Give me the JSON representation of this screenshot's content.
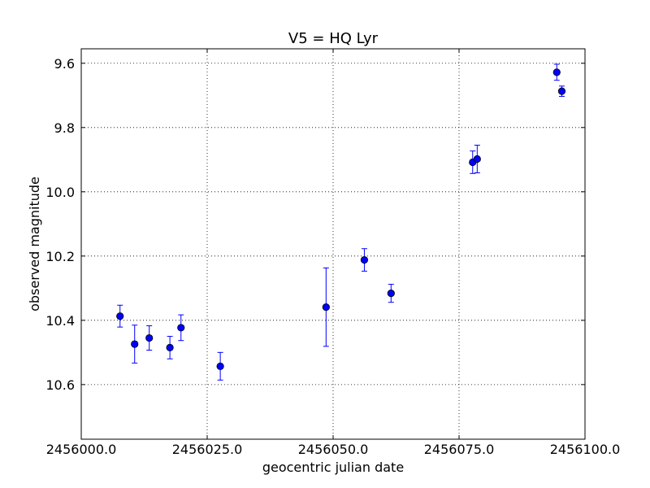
{
  "chart_data": {
    "type": "scatter",
    "title": "V5 = HQ Lyr",
    "xlabel": "geocentric julian date",
    "ylabel": "observed magnitude",
    "xlim": [
      2456000.0,
      2456100.0
    ],
    "ylim": [
      10.77,
      9.555
    ],
    "y_inverted": true,
    "grid": true,
    "xticks": [
      2456000.0,
      2456025.0,
      2456050.0,
      2456075.0,
      2456100.0
    ],
    "xtick_labels": [
      "2456000.0",
      "2456025.0",
      "2456050.0",
      "2456075.0",
      "2456100.0"
    ],
    "yticks": [
      9.6,
      9.8,
      10.0,
      10.2,
      10.4,
      10.6
    ],
    "ytick_labels": [
      "9.6",
      "9.8",
      "10.0",
      "10.2",
      "10.4",
      "10.6"
    ],
    "points": [
      {
        "x": 2456007.7,
        "y": 10.387,
        "err": 0.034
      },
      {
        "x": 2456010.6,
        "y": 10.474,
        "err": 0.059
      },
      {
        "x": 2456013.5,
        "y": 10.455,
        "err": 0.038
      },
      {
        "x": 2456017.6,
        "y": 10.485,
        "err": 0.035
      },
      {
        "x": 2456019.8,
        "y": 10.423,
        "err": 0.04
      },
      {
        "x": 2456027.6,
        "y": 10.543,
        "err": 0.043
      },
      {
        "x": 2456048.6,
        "y": 10.359,
        "err": 0.122
      },
      {
        "x": 2456056.2,
        "y": 10.212,
        "err": 0.035
      },
      {
        "x": 2456061.5,
        "y": 10.316,
        "err": 0.028
      },
      {
        "x": 2456077.7,
        "y": 9.908,
        "err": 0.035
      },
      {
        "x": 2456078.6,
        "y": 9.898,
        "err": 0.043
      },
      {
        "x": 2456094.4,
        "y": 9.628,
        "err": 0.025
      },
      {
        "x": 2456095.4,
        "y": 9.687,
        "err": 0.016
      }
    ]
  }
}
